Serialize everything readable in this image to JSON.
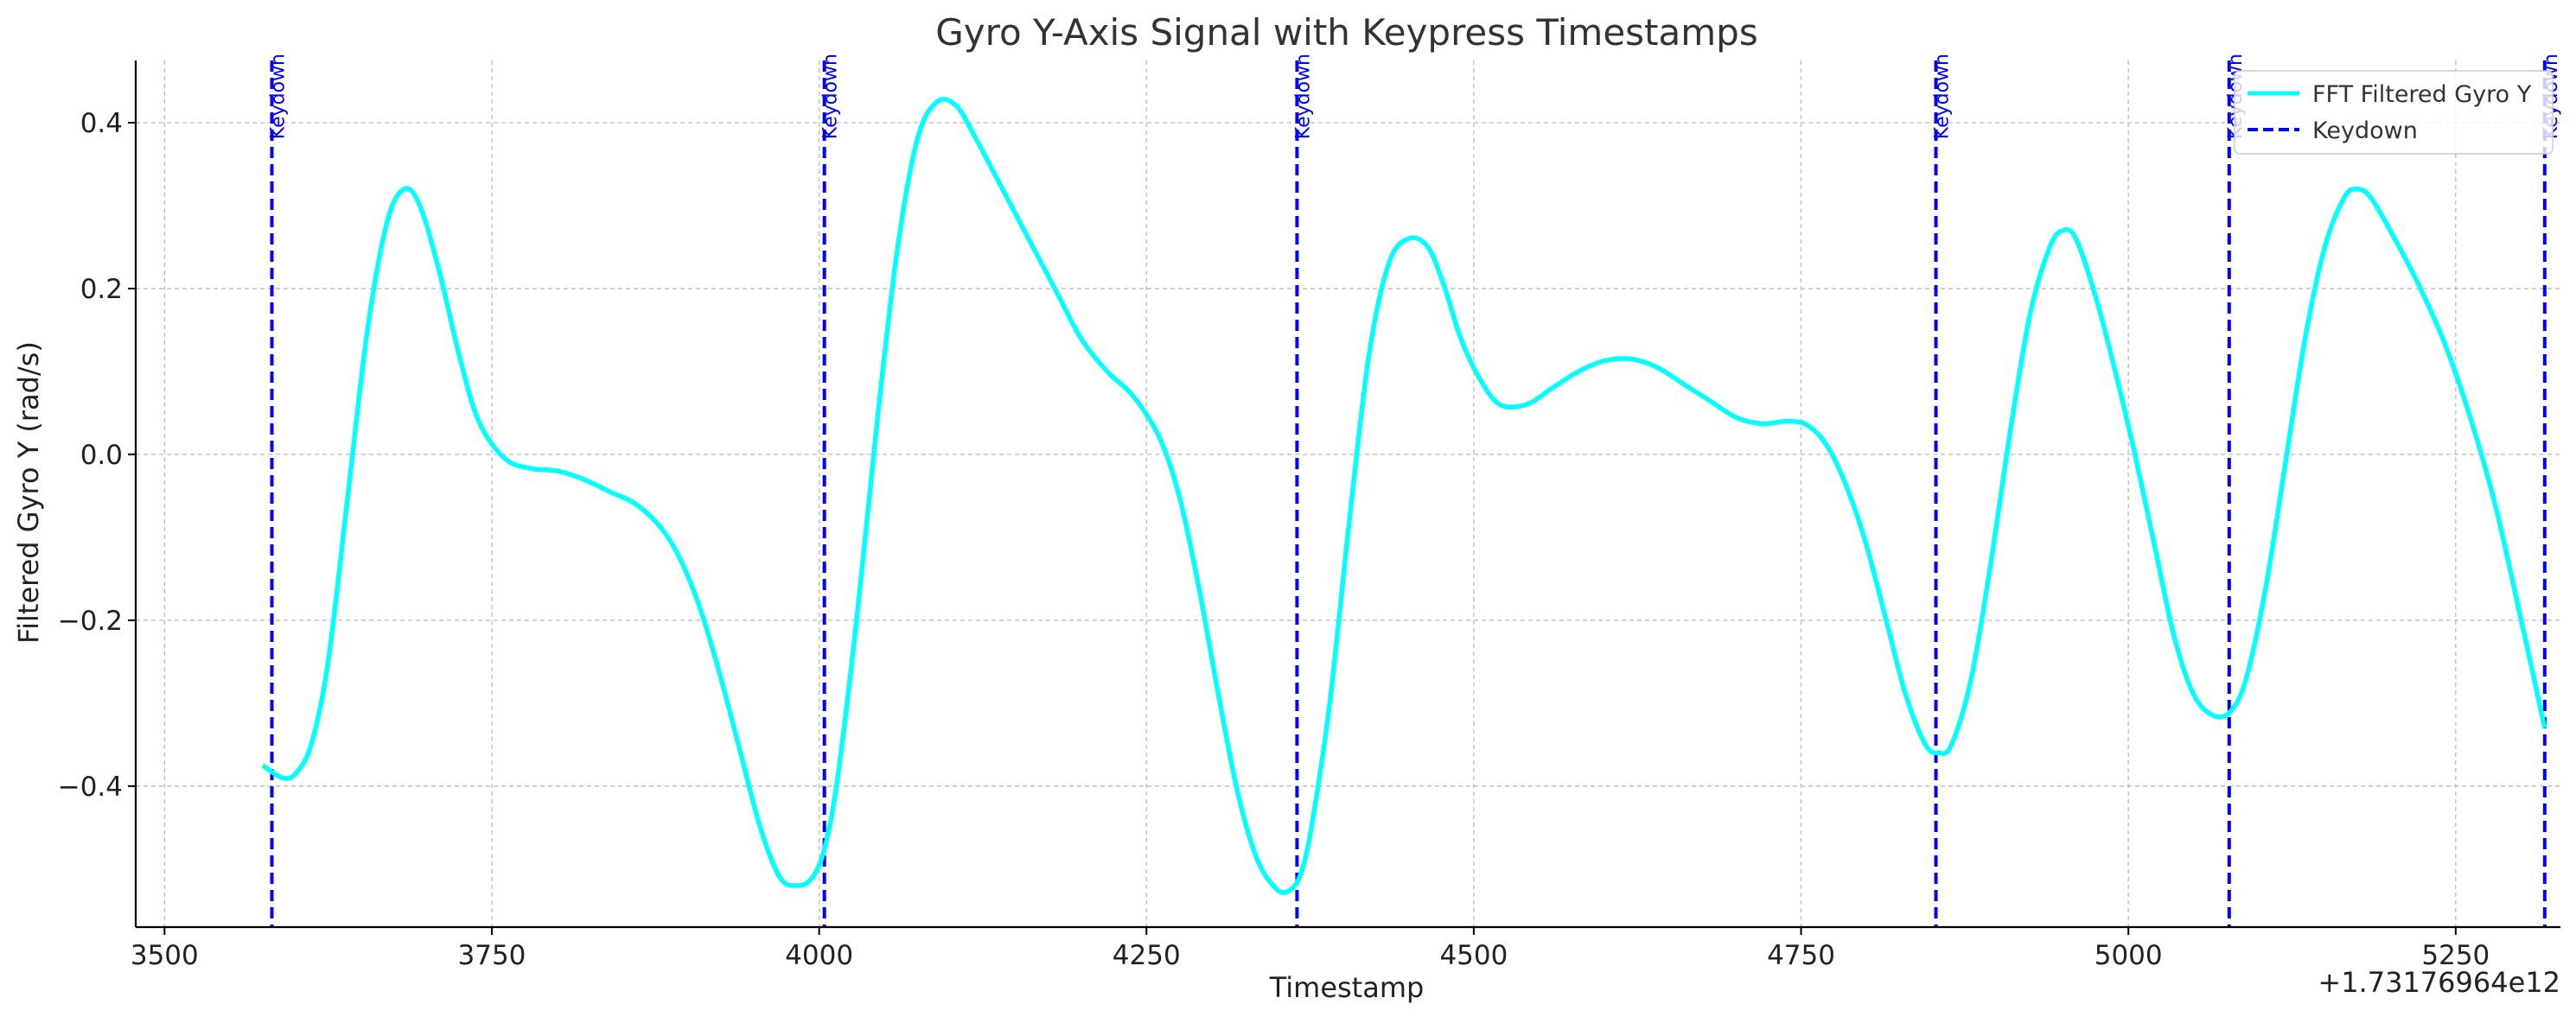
{
  "chart_data": {
    "type": "line",
    "title": "Gyro Y-Axis Signal with Keypress Timestamps",
    "xlabel": "Timestamp",
    "ylabel": "Filtered Gyro Y (rad/s)",
    "x_offset_label": "+1.73176964e12",
    "xlim": [
      3478,
      5330
    ],
    "ylim": [
      -0.57,
      0.475
    ],
    "xticks": [
      3500,
      3750,
      4000,
      4250,
      4500,
      4750,
      5000,
      5250
    ],
    "xtick_labels": [
      "3500",
      "3750",
      "4000",
      "4250",
      "4500",
      "4750",
      "5000",
      "5250"
    ],
    "yticks": [
      -0.4,
      -0.2,
      0.0,
      0.2,
      0.4
    ],
    "ytick_labels": [
      "−0.4",
      "−0.2",
      "0.0",
      "0.2",
      "0.4"
    ],
    "grid": true,
    "legend": {
      "placement": "top-right",
      "entries": [
        {
          "label": "FFT Filtered Gyro Y",
          "style": "solid",
          "color": "#00ffff"
        },
        {
          "label": "Keydown",
          "style": "dashed",
          "color": "#0000ff"
        }
      ]
    },
    "series": [
      {
        "name": "FFT Filtered Gyro Y",
        "color": "#00ffff",
        "x": [
          3575,
          3590,
          3600,
          3612,
          3625,
          3640,
          3655,
          3670,
          3683,
          3695,
          3710,
          3725,
          3740,
          3760,
          3780,
          3800,
          3820,
          3840,
          3860,
          3880,
          3895,
          3910,
          3925,
          3940,
          3955,
          3970,
          3983,
          3995,
          4005,
          4015,
          4030,
          4045,
          4060,
          4075,
          4090,
          4105,
          4120,
          4140,
          4160,
          4180,
          4200,
          4220,
          4240,
          4260,
          4275,
          4290,
          4305,
          4320,
          4335,
          4350,
          4360,
          4368,
          4376,
          4390,
          4405,
          4420,
          4435,
          4450,
          4465,
          4478,
          4490,
          4505,
          4520,
          4540,
          4560,
          4580,
          4600,
          4620,
          4640,
          4660,
          4680,
          4700,
          4720,
          4740,
          4755,
          4770,
          4785,
          4800,
          4815,
          4830,
          4845,
          4855,
          4865,
          4880,
          4895,
          4910,
          4925,
          4940,
          4950,
          4960,
          4975,
          4990,
          5005,
          5020,
          5035,
          5050,
          5065,
          5078,
          5090,
          5105,
          5120,
          5135,
          5150,
          5165,
          5175,
          5185,
          5200,
          5220,
          5240,
          5260,
          5280,
          5300,
          5318
        ],
        "values": [
          -0.375,
          -0.39,
          -0.385,
          -0.35,
          -0.25,
          -0.05,
          0.15,
          0.28,
          0.32,
          0.3,
          0.22,
          0.12,
          0.04,
          -0.005,
          -0.017,
          -0.02,
          -0.03,
          -0.045,
          -0.06,
          -0.09,
          -0.13,
          -0.19,
          -0.27,
          -0.36,
          -0.45,
          -0.51,
          -0.52,
          -0.51,
          -0.47,
          -0.38,
          -0.18,
          0.05,
          0.25,
          0.38,
          0.425,
          0.42,
          0.38,
          0.32,
          0.26,
          0.2,
          0.14,
          0.1,
          0.07,
          0.02,
          -0.05,
          -0.16,
          -0.29,
          -0.41,
          -0.49,
          -0.525,
          -0.525,
          -0.505,
          -0.45,
          -0.3,
          -0.08,
          0.12,
          0.23,
          0.26,
          0.25,
          0.2,
          0.14,
          0.09,
          0.06,
          0.06,
          0.08,
          0.1,
          0.113,
          0.115,
          0.105,
          0.085,
          0.065,
          0.045,
          0.037,
          0.04,
          0.035,
          0.01,
          -0.04,
          -0.11,
          -0.2,
          -0.29,
          -0.35,
          -0.36,
          -0.35,
          -0.27,
          -0.13,
          0.03,
          0.17,
          0.25,
          0.27,
          0.26,
          0.19,
          0.1,
          0.0,
          -0.11,
          -0.22,
          -0.29,
          -0.315,
          -0.31,
          -0.27,
          -0.16,
          -0.01,
          0.14,
          0.25,
          0.31,
          0.32,
          0.31,
          0.27,
          0.21,
          0.14,
          0.05,
          -0.06,
          -0.2,
          -0.33
        ]
      }
    ],
    "keydown_markers": {
      "name": "Keydown",
      "color": "#0000ff",
      "label": "Keydown",
      "x": [
        3582,
        4004,
        4365,
        4853,
        5077,
        5318
      ]
    }
  }
}
